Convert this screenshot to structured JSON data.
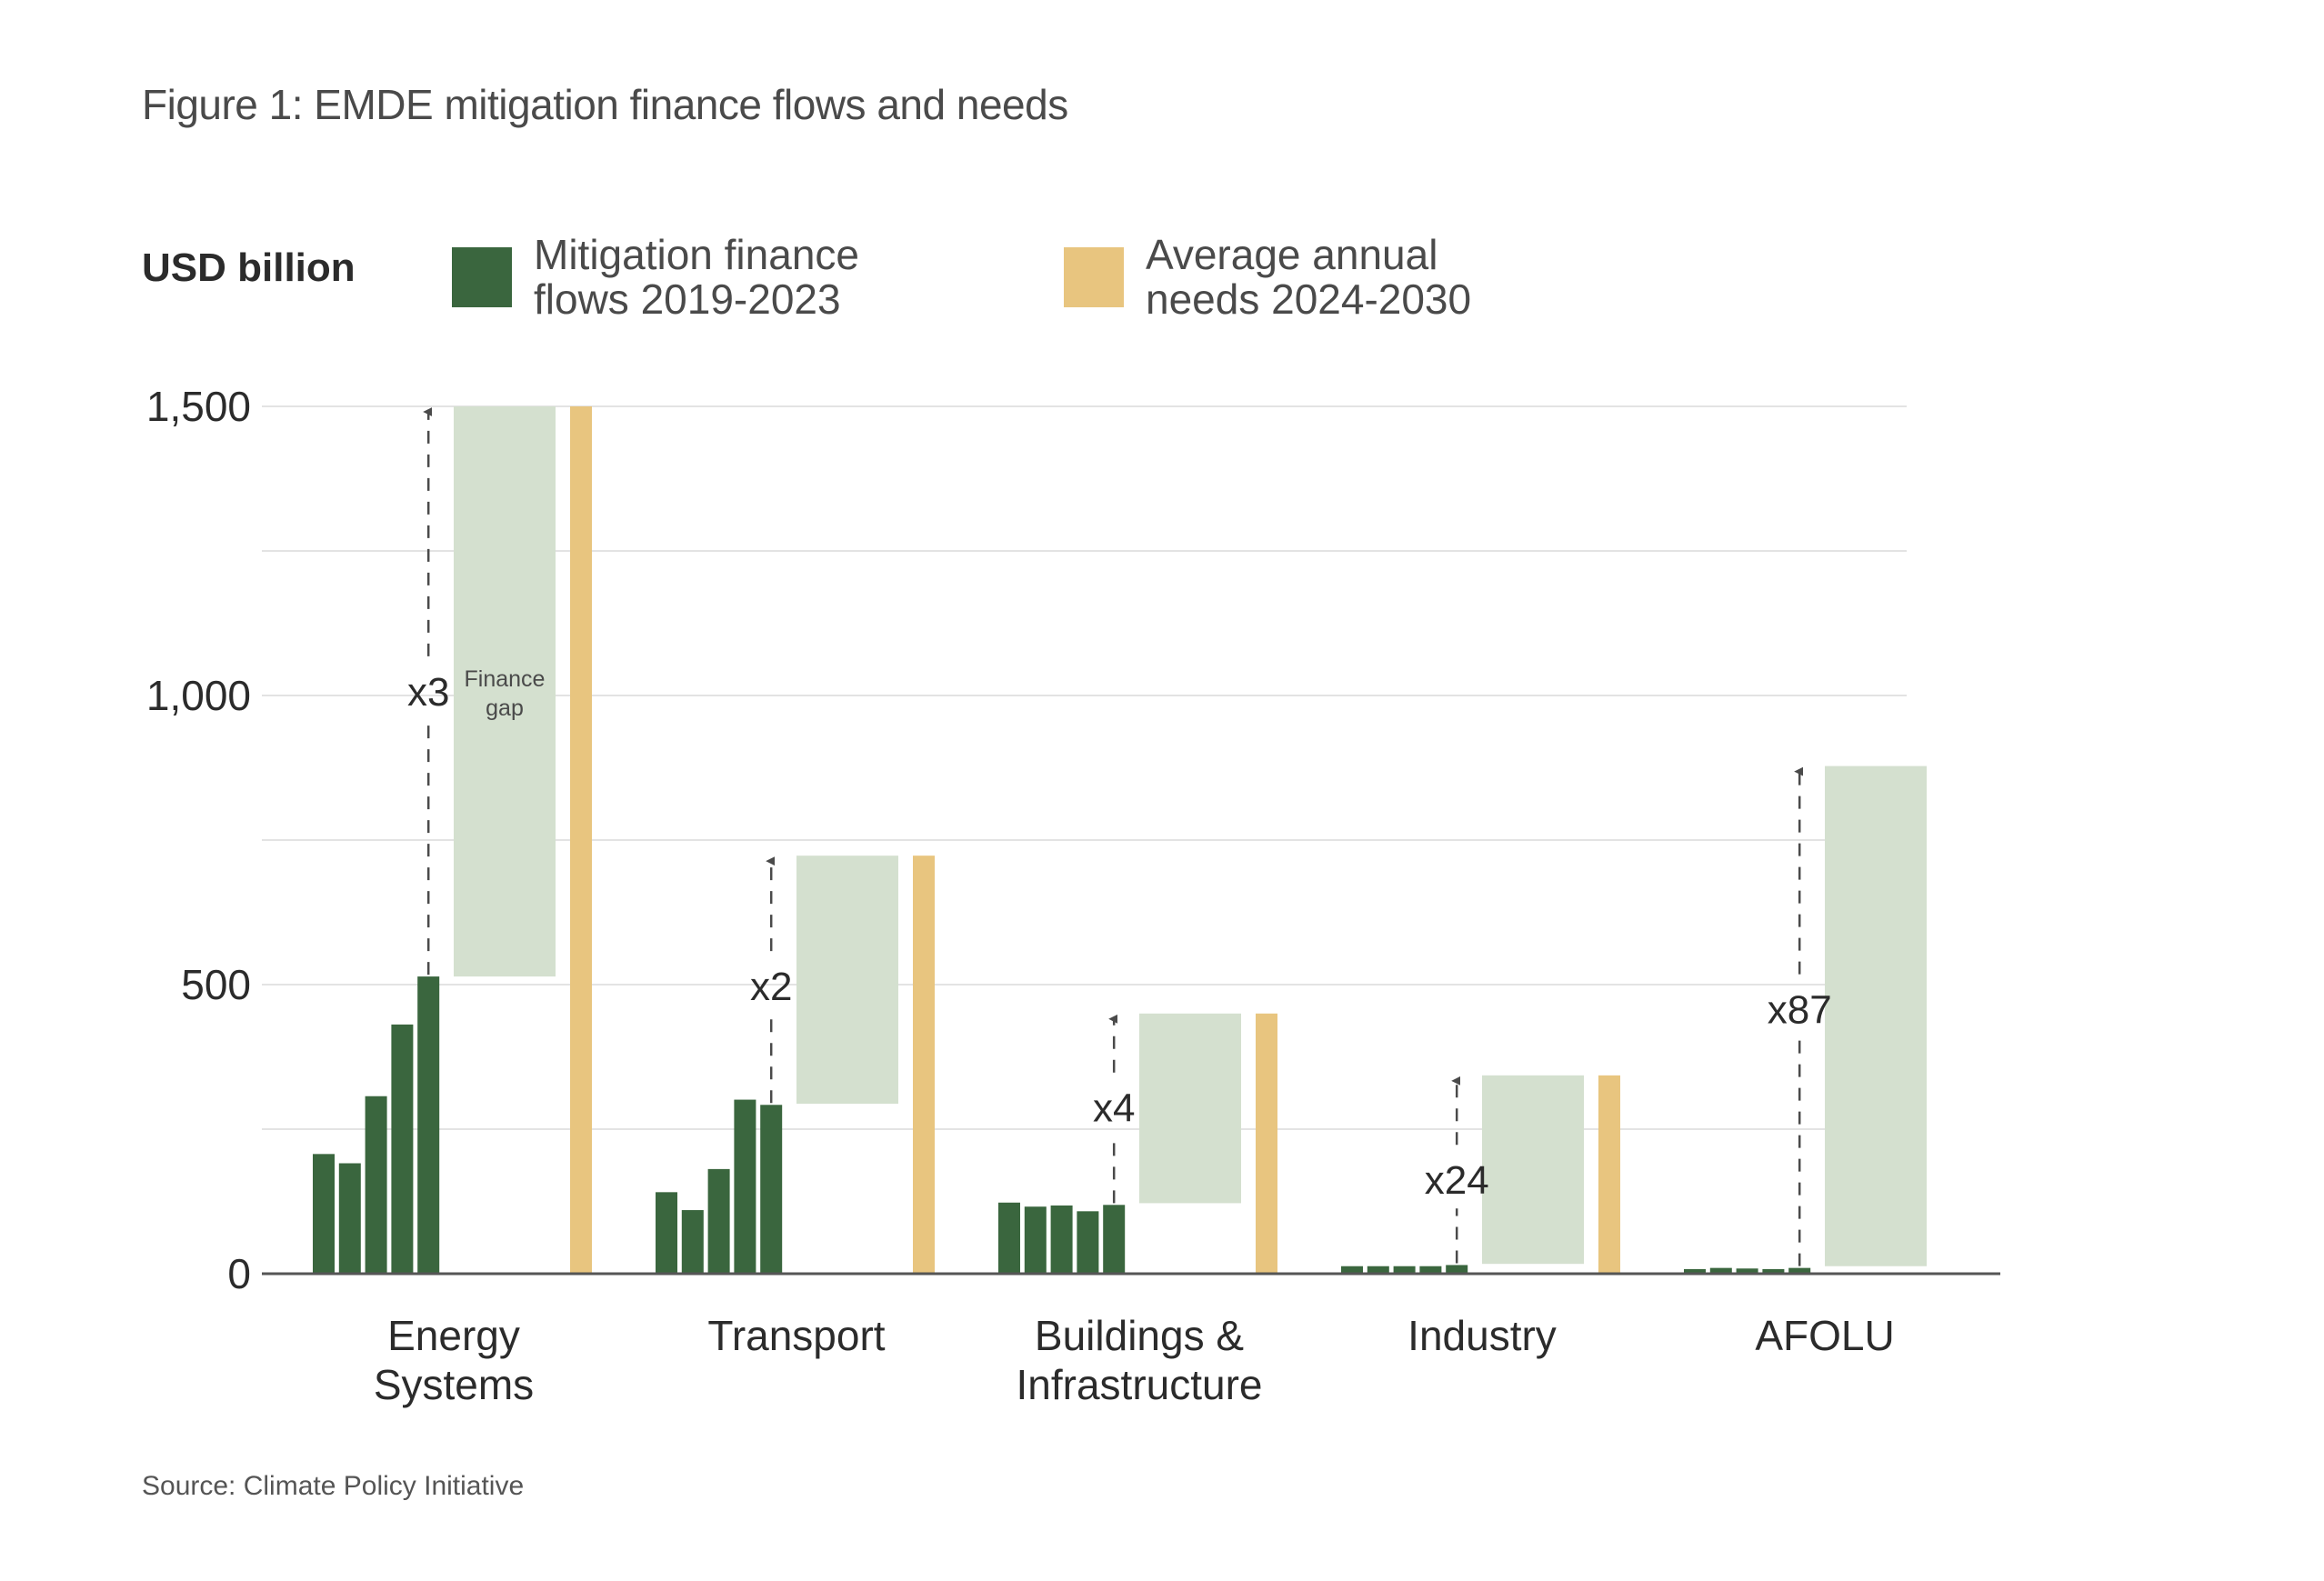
{
  "title": "Figure 1: EMDE mitigation finance flows and needs",
  "unit_label": "USD billion",
  "legend": [
    {
      "label_line1": "Mitigation finance",
      "label_line2": "flows 2019-2023",
      "color": "#3A663E"
    },
    {
      "label_line1": "Average annual",
      "label_line2": "needs 2024-2030",
      "color": "#E8C57F"
    }
  ],
  "source": "Source: Climate Policy Initiative",
  "colors": {
    "flows": "#3A663E",
    "needs": "#E8C57F",
    "gap": "#D4E0CF",
    "grid": "#E3E3E3",
    "axis": "#555555",
    "arrow": "#4a4a4a"
  },
  "chart_data": {
    "type": "bar",
    "title": "Figure 1: EMDE mitigation finance flows and needs",
    "ylabel": "USD billion",
    "xlabel": "",
    "ylim": [
      0,
      1500
    ],
    "yticks": [
      0,
      500,
      1000,
      1500
    ],
    "ytick_labels": [
      "0",
      "500",
      "1,000",
      "1,500"
    ],
    "minor_gridlines": [
      250,
      750,
      1250
    ],
    "grid": true,
    "legend_position": "top",
    "categories": [
      {
        "label_lines": [
          "Energy",
          "Systems"
        ]
      },
      {
        "label_lines": [
          "Transport"
        ]
      },
      {
        "label_lines": [
          "Buildings &",
          "Infrastructure"
        ]
      },
      {
        "label_lines": [
          "Industry"
        ]
      },
      {
        "label_lines": [
          "AFOLU"
        ]
      }
    ],
    "flow_years": [
      "2019",
      "2020",
      "2021",
      "2022",
      "2023"
    ],
    "series": [
      {
        "name": "Mitigation finance flows 2019-2023",
        "values_by_category": [
          [
            207,
            191,
            307,
            431,
            514
          ],
          [
            141,
            110,
            181,
            301,
            292
          ],
          [
            123,
            116,
            118,
            108,
            119
          ],
          [
            13,
            13,
            13,
            13,
            15
          ],
          [
            8,
            10,
            9,
            8,
            10
          ]
        ]
      },
      {
        "name": "Average annual needs 2024-2030",
        "values": [
          1500,
          723,
          450,
          343,
          null
        ]
      }
    ],
    "finance_gap": [
      {
        "from": 514,
        "to": 1500,
        "label_lines": [
          "Finance",
          "gap"
        ]
      },
      {
        "from": 294,
        "to": 723
      },
      {
        "from": 122,
        "to": 450
      },
      {
        "from": 17,
        "to": 343
      },
      {
        "from": 13,
        "to": 878
      }
    ],
    "multipliers": [
      {
        "label": "x3",
        "arrow_to": 1500,
        "label_at": 1005
      },
      {
        "label": "x2",
        "arrow_to": 723,
        "label_at": 495
      },
      {
        "label": "x4",
        "arrow_to": 450,
        "label_at": 285
      },
      {
        "label": "x24",
        "arrow_to": 343,
        "label_at": 160
      },
      {
        "label": "x87",
        "arrow_to": 878,
        "label_at": 455
      }
    ]
  }
}
